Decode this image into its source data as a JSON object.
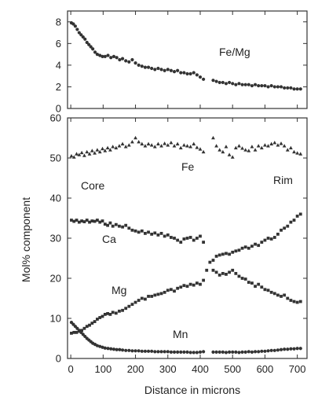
{
  "chart_data": [
    {
      "type": "scatter",
      "panel": "top",
      "ylim": [
        0,
        9
      ],
      "xlim": [
        -10,
        730
      ],
      "yticks": [
        "0",
        "2",
        "4",
        "6",
        "8"
      ],
      "ytick_values": [
        0,
        2,
        4,
        6,
        8
      ],
      "annotations": [
        "Fe/Mg"
      ],
      "series": [
        {
          "name": "Fe/Mg",
          "marker": "circle",
          "x": [
            2,
            8,
            14,
            20,
            26,
            32,
            38,
            44,
            50,
            56,
            62,
            68,
            75,
            82,
            90,
            98,
            106,
            115,
            124,
            133,
            142,
            151,
            160,
            170,
            180,
            190,
            200,
            210,
            220,
            230,
            240,
            250,
            260,
            270,
            280,
            290,
            300,
            310,
            320,
            330,
            340,
            350,
            360,
            370,
            380,
            390,
            400,
            410,
            440,
            450,
            460,
            470,
            480,
            490,
            500,
            510,
            520,
            530,
            540,
            550,
            560,
            570,
            580,
            590,
            600,
            610,
            620,
            630,
            640,
            650,
            660,
            670,
            680,
            690,
            700,
            710
          ],
          "y": [
            7.9,
            7.8,
            7.6,
            7.3,
            7.0,
            6.8,
            6.6,
            6.4,
            6.1,
            5.9,
            5.7,
            5.5,
            5.2,
            5.0,
            4.9,
            4.8,
            4.8,
            4.9,
            4.7,
            4.8,
            4.7,
            4.5,
            4.6,
            4.4,
            4.3,
            4.5,
            4.2,
            4.0,
            3.9,
            3.8,
            3.8,
            3.7,
            3.6,
            3.7,
            3.6,
            3.5,
            3.6,
            3.5,
            3.4,
            3.5,
            3.3,
            3.3,
            3.2,
            3.2,
            3.3,
            3.1,
            2.9,
            2.7,
            2.6,
            2.5,
            2.4,
            2.4,
            2.3,
            2.4,
            2.3,
            2.2,
            2.3,
            2.2,
            2.2,
            2.2,
            2.1,
            2.2,
            2.1,
            2.1,
            2.1,
            2.0,
            2.1,
            2.0,
            2.0,
            2.0,
            1.9,
            1.9,
            1.9,
            1.8,
            1.8,
            1.8
          ]
        }
      ]
    },
    {
      "type": "scatter",
      "panel": "bottom",
      "ylim": [
        0,
        60
      ],
      "xlim": [
        -10,
        730
      ],
      "yticks": [
        "0",
        "10",
        "20",
        "30",
        "40",
        "50",
        "60"
      ],
      "ytick_values": [
        0,
        10,
        20,
        30,
        40,
        50,
        60
      ],
      "xticks": [
        "0",
        "100",
        "200",
        "300",
        "400",
        "500",
        "600",
        "700"
      ],
      "xtick_values": [
        0,
        100,
        200,
        300,
        400,
        500,
        600,
        700
      ],
      "xlabel": "Distance in microns",
      "ylabel": "Mol% component",
      "annotations": [
        "Core",
        "Rim"
      ],
      "series": [
        {
          "name": "Fe",
          "marker": "triangle",
          "x": [
            2,
            10,
            18,
            26,
            34,
            42,
            50,
            58,
            66,
            74,
            82,
            90,
            98,
            106,
            114,
            122,
            130,
            140,
            150,
            160,
            170,
            180,
            190,
            200,
            210,
            220,
            230,
            240,
            250,
            260,
            270,
            280,
            290,
            300,
            310,
            320,
            330,
            340,
            350,
            360,
            370,
            380,
            390,
            400,
            410,
            440,
            450,
            460,
            470,
            480,
            490,
            500,
            510,
            520,
            530,
            540,
            550,
            560,
            570,
            580,
            590,
            600,
            610,
            620,
            630,
            640,
            650,
            660,
            670,
            680,
            690,
            700,
            710
          ],
          "y": [
            50.5,
            50.2,
            51.0,
            50.8,
            51.3,
            50.6,
            51.5,
            51.0,
            51.8,
            51.2,
            52.0,
            51.5,
            52.3,
            51.8,
            52.5,
            52.0,
            52.8,
            52.5,
            53.0,
            53.5,
            52.8,
            53.2,
            54.0,
            55.0,
            54.0,
            53.5,
            53.0,
            53.5,
            53.2,
            52.8,
            53.5,
            53.0,
            53.6,
            53.2,
            53.8,
            53.0,
            53.5,
            52.5,
            53.2,
            53.0,
            52.8,
            53.5,
            52.6,
            52.2,
            51.5,
            55.0,
            53.0,
            52.0,
            51.5,
            52.8,
            50.8,
            50.2,
            52.5,
            53.0,
            52.4,
            52.0,
            51.8,
            52.8,
            52.0,
            53.0,
            52.5,
            53.2,
            53.0,
            53.5,
            53.8,
            53.2,
            53.6,
            53.0,
            52.0,
            52.5,
            51.5,
            51.2,
            51.0
          ]
        },
        {
          "name": "Ca",
          "marker": "square",
          "x": [
            2,
            10,
            18,
            26,
            34,
            42,
            50,
            58,
            66,
            74,
            82,
            90,
            98,
            106,
            114,
            122,
            130,
            140,
            150,
            160,
            170,
            180,
            190,
            200,
            210,
            220,
            230,
            240,
            250,
            260,
            270,
            280,
            290,
            300,
            310,
            320,
            330,
            340,
            350,
            360,
            370,
            380,
            390,
            400,
            410,
            440,
            450,
            460,
            470,
            480,
            490,
            500,
            510,
            520,
            530,
            540,
            550,
            560,
            570,
            580,
            590,
            600,
            610,
            620,
            630,
            640,
            650,
            660,
            670,
            680,
            690,
            700,
            710
          ],
          "y": [
            34.5,
            34.2,
            34.5,
            34.0,
            34.3,
            34.1,
            34.5,
            34.0,
            34.3,
            34.2,
            34.5,
            34.0,
            34.3,
            33.5,
            33.2,
            33.8,
            33.0,
            33.4,
            33.0,
            32.8,
            33.2,
            32.5,
            32.0,
            31.8,
            31.5,
            31.8,
            31.2,
            31.5,
            31.0,
            31.3,
            30.8,
            31.2,
            30.5,
            30.8,
            30.2,
            30.0,
            29.5,
            29.0,
            29.8,
            30.0,
            30.2,
            29.5,
            30.0,
            30.5,
            29.0,
            22.0,
            21.5,
            20.8,
            21.2,
            21.0,
            21.5,
            22.0,
            21.2,
            20.5,
            20.0,
            19.8,
            19.0,
            18.8,
            18.0,
            18.5,
            17.8,
            17.2,
            17.0,
            16.5,
            16.2,
            15.8,
            15.5,
            15.8,
            15.0,
            14.5,
            14.2,
            14.0,
            14.2
          ]
        },
        {
          "name": "Mg",
          "marker": "square",
          "x": [
            2,
            10,
            18,
            26,
            34,
            42,
            50,
            58,
            66,
            74,
            82,
            90,
            98,
            106,
            114,
            122,
            130,
            140,
            150,
            160,
            170,
            180,
            190,
            200,
            210,
            220,
            230,
            240,
            250,
            260,
            270,
            280,
            290,
            300,
            310,
            320,
            330,
            340,
            350,
            360,
            370,
            380,
            390,
            400,
            410,
            420,
            430,
            440,
            450,
            460,
            470,
            480,
            490,
            500,
            510,
            520,
            530,
            540,
            550,
            560,
            570,
            580,
            590,
            600,
            610,
            620,
            630,
            640,
            650,
            660,
            670,
            680,
            690,
            700,
            710
          ],
          "y": [
            6.3,
            6.5,
            6.5,
            6.8,
            7.0,
            7.5,
            8.0,
            8.3,
            8.8,
            9.2,
            9.8,
            10.2,
            10.5,
            11.0,
            11.2,
            11.0,
            11.5,
            11.3,
            11.8,
            12.0,
            12.5,
            13.0,
            13.5,
            14.0,
            14.5,
            15.0,
            14.8,
            15.5,
            15.5,
            15.8,
            16.0,
            16.2,
            16.5,
            17.0,
            17.2,
            16.8,
            17.5,
            17.8,
            18.2,
            18.0,
            18.5,
            18.3,
            18.8,
            18.5,
            19.5,
            22.0,
            24.0,
            24.5,
            25.5,
            25.8,
            26.0,
            26.2,
            26.0,
            26.5,
            26.8,
            27.0,
            27.5,
            27.8,
            27.5,
            28.0,
            28.5,
            28.2,
            29.0,
            29.5,
            30.0,
            29.8,
            30.2,
            31.0,
            32.0,
            32.5,
            33.0,
            34.0,
            34.5,
            35.5,
            36.0
          ]
        },
        {
          "name": "Mn",
          "marker": "circle",
          "x": [
            2,
            8,
            14,
            20,
            26,
            32,
            38,
            44,
            50,
            56,
            62,
            68,
            75,
            82,
            90,
            98,
            106,
            115,
            124,
            133,
            142,
            151,
            160,
            170,
            180,
            190,
            200,
            210,
            220,
            230,
            240,
            250,
            260,
            270,
            280,
            290,
            300,
            310,
            320,
            330,
            340,
            350,
            360,
            370,
            380,
            390,
            400,
            410,
            440,
            450,
            460,
            470,
            480,
            490,
            500,
            510,
            520,
            530,
            540,
            550,
            560,
            570,
            580,
            590,
            600,
            610,
            620,
            630,
            640,
            650,
            660,
            670,
            680,
            690,
            700,
            710
          ],
          "y": [
            9.0,
            8.5,
            8.0,
            7.5,
            7.0,
            6.5,
            6.0,
            5.5,
            5.0,
            4.6,
            4.2,
            3.8,
            3.5,
            3.2,
            3.0,
            2.8,
            2.6,
            2.5,
            2.4,
            2.3,
            2.2,
            2.2,
            2.1,
            2.0,
            2.0,
            1.9,
            1.9,
            1.9,
            1.8,
            1.8,
            1.8,
            1.8,
            1.7,
            1.7,
            1.7,
            1.7,
            1.7,
            1.6,
            1.6,
            1.6,
            1.6,
            1.6,
            1.6,
            1.5,
            1.5,
            1.5,
            1.6,
            1.7,
            1.6,
            1.6,
            1.6,
            1.6,
            1.5,
            1.6,
            1.6,
            1.6,
            1.5,
            1.6,
            1.6,
            1.7,
            1.6,
            1.7,
            1.7,
            1.8,
            1.8,
            1.9,
            2.0,
            2.0,
            2.1,
            2.2,
            2.3,
            2.3,
            2.4,
            2.4,
            2.5,
            2.5
          ]
        }
      ]
    }
  ]
}
